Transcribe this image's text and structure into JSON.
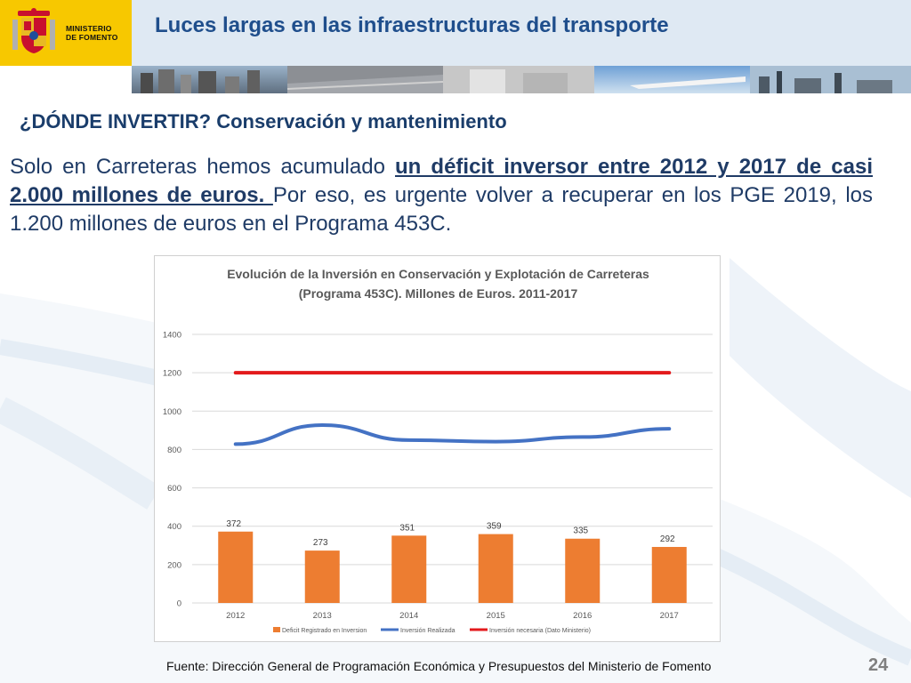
{
  "header": {
    "ministry_line1": "MINISTERIO",
    "ministry_line2": "DE FOMENTO",
    "title": "Luces largas en las infraestructuras del transporte"
  },
  "subtitle": "¿DÓNDE INVERTIR? Conservación y mantenimiento",
  "intro": {
    "part1": "Solo en Carreteras hemos acumulado ",
    "highlight": "un déficit inversor entre 2012 y 2017 de casi 2.000 millones de euros. ",
    "part2": "Por eso, es urgente volver a recuperar en los PGE 2019, los 1.200 millones de euros en el Programa 453C."
  },
  "chart_data": {
    "type": "bar",
    "title_line1": "Evolución de la Inversión en Conservación y Explotación de Carreteras",
    "title_line2": "(Programa 453C). Millones de Euros. 2011-2017",
    "categories": [
      "2012",
      "2013",
      "2014",
      "2015",
      "2016",
      "2017"
    ],
    "ylim": [
      0,
      1400
    ],
    "yticks": [
      0,
      200,
      400,
      600,
      800,
      1000,
      1200,
      1400
    ],
    "grid": true,
    "legend_position": "bottom",
    "series": [
      {
        "name": "Deficit Registrado en Inversion",
        "type": "bar",
        "color": "#ed7d31",
        "values": [
          372,
          273,
          351,
          359,
          335,
          292
        ],
        "labels": [
          "372",
          "273",
          "351",
          "359",
          "335",
          "292"
        ]
      },
      {
        "name": "Inversión Realizada",
        "type": "line",
        "color": "#4472c4",
        "values": [
          828,
          927,
          849,
          841,
          865,
          908
        ]
      },
      {
        "name": "Inversión necesaria (Dato Ministerio)",
        "type": "line",
        "color": "#e31a1c",
        "values": [
          1200,
          1200,
          1200,
          1200,
          1200,
          1200
        ]
      }
    ]
  },
  "footer": "Fuente: Dirección General de Programación Económica y Presupuestos del Ministerio de Fomento",
  "page_number": "24"
}
